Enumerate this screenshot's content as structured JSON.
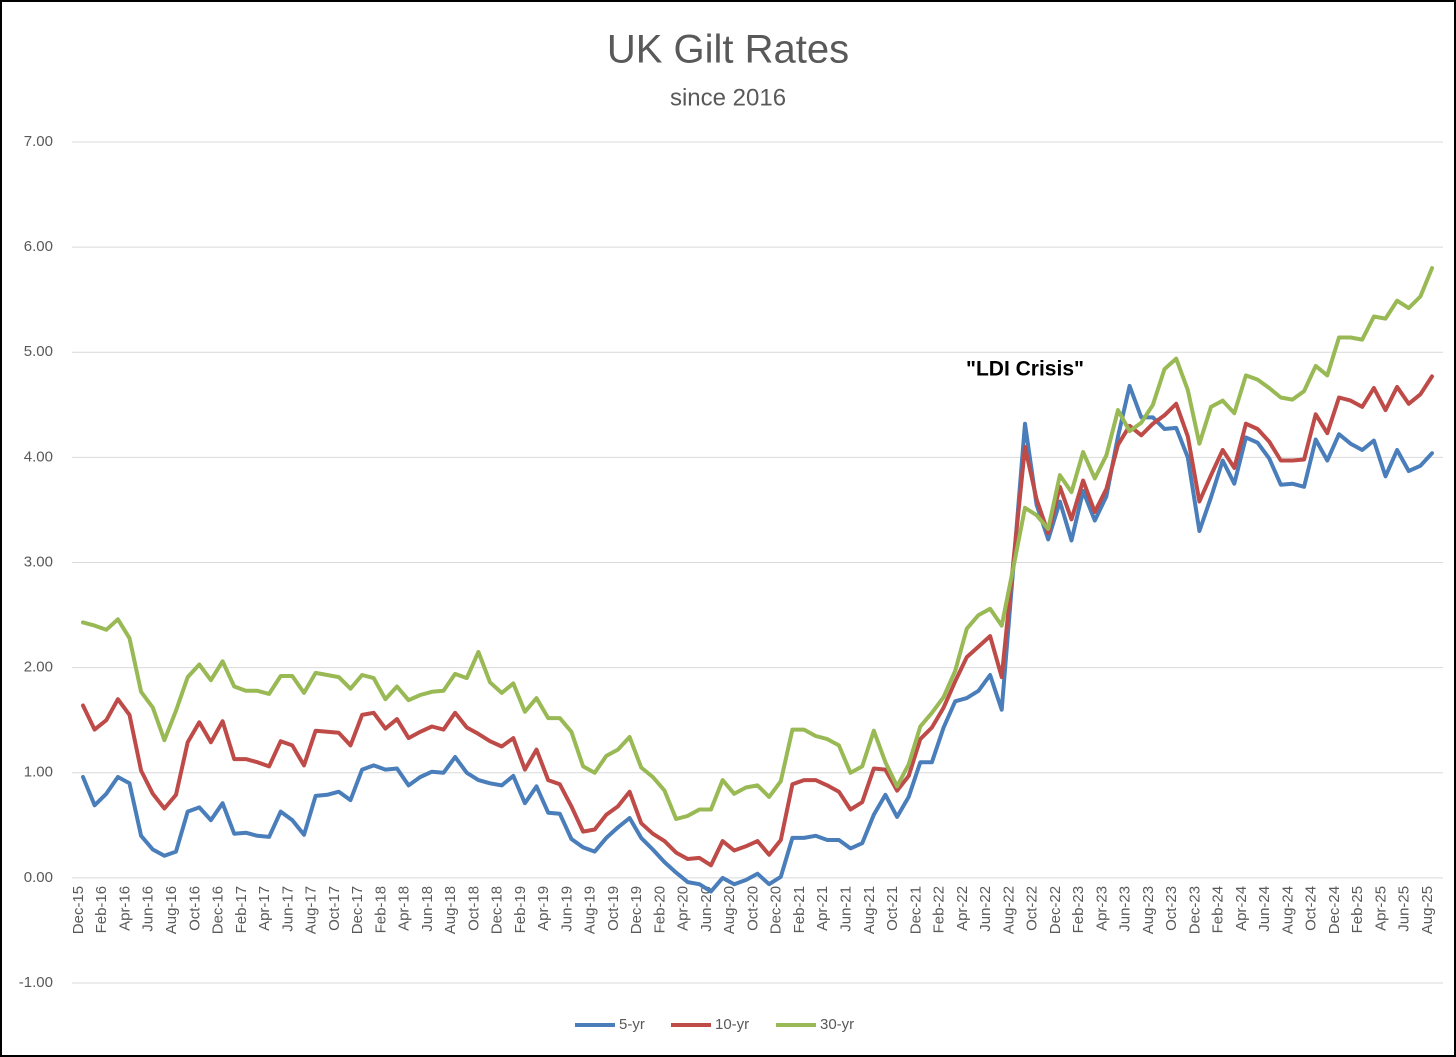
{
  "chart_data": {
    "type": "line",
    "title": "UK Gilt Rates",
    "subtitle": "since 2016",
    "annotation": "\"LDI Crisis\"",
    "categories": [
      "Dec-15",
      null,
      "Feb-16",
      null,
      "Apr-16",
      null,
      "Jun-16",
      null,
      "Aug-16",
      null,
      "Oct-16",
      null,
      "Dec-16",
      null,
      "Feb-17",
      null,
      "Apr-17",
      null,
      "Jun-17",
      null,
      "Aug-17",
      null,
      "Oct-17",
      null,
      "Dec-17",
      null,
      "Feb-18",
      null,
      "Apr-18",
      null,
      "Jun-18",
      null,
      "Aug-18",
      null,
      "Oct-18",
      null,
      "Dec-18",
      null,
      "Feb-19",
      null,
      "Apr-19",
      null,
      "Jun-19",
      null,
      "Aug-19",
      null,
      "Oct-19",
      null,
      "Dec-19",
      null,
      "Feb-20",
      null,
      "Apr-20",
      null,
      "Jun-20",
      null,
      "Aug-20",
      null,
      "Oct-20",
      null,
      "Dec-20",
      null,
      "Feb-21",
      null,
      "Apr-21",
      null,
      "Jun-21",
      null,
      "Aug-21",
      null,
      "Oct-21",
      null,
      "Dec-21",
      null,
      "Feb-22",
      null,
      "Apr-22",
      null,
      "Jun-22",
      null,
      "Aug-22",
      null,
      "Oct-22",
      null,
      "Dec-22",
      null,
      "Feb-23",
      null,
      "Apr-23",
      null,
      "Jun-23",
      null,
      "Aug-23",
      null,
      "Oct-23",
      null,
      "Dec-23",
      null,
      "Feb-24",
      null,
      "Apr-24",
      null,
      "Jun-24",
      null,
      "Aug-24",
      null,
      "Oct-24",
      null,
      "Dec-24",
      null,
      "Feb-25",
      null,
      "Apr-25",
      null,
      "Jun-25",
      null,
      "Aug-25"
    ],
    "series": [
      {
        "name": "5-yr",
        "color": "#4a7ebb",
        "values": [
          0.96,
          0.69,
          0.8,
          0.96,
          0.9,
          0.4,
          0.27,
          0.21,
          0.25,
          0.63,
          0.67,
          0.55,
          0.71,
          0.42,
          0.43,
          0.4,
          0.39,
          0.63,
          0.55,
          0.41,
          0.78,
          0.79,
          0.82,
          0.74,
          1.03,
          1.07,
          1.03,
          1.04,
          0.88,
          0.96,
          1.01,
          1.0,
          1.15,
          1.0,
          0.93,
          0.9,
          0.88,
          0.97,
          0.71,
          0.87,
          0.62,
          0.61,
          0.37,
          0.29,
          0.25,
          0.38,
          0.48,
          0.57,
          0.38,
          0.27,
          0.15,
          0.05,
          -0.04,
          -0.06,
          -0.13,
          0.0,
          -0.06,
          -0.02,
          0.04,
          -0.06,
          0.01,
          0.38,
          0.38,
          0.4,
          0.36,
          0.36,
          0.28,
          0.33,
          0.6,
          0.79,
          0.58,
          0.77,
          1.1,
          1.1,
          1.43,
          1.68,
          1.71,
          1.78,
          1.93,
          1.6,
          2.95,
          4.32,
          3.55,
          3.22,
          3.58,
          3.21,
          3.68,
          3.4,
          3.63,
          4.2,
          4.68,
          4.38,
          4.38,
          4.27,
          4.28,
          4.0,
          3.3,
          3.62,
          3.97,
          3.75,
          4.19,
          4.14,
          3.99,
          3.74,
          3.75,
          3.72,
          4.17,
          3.97,
          4.22,
          4.13,
          4.07,
          4.16,
          3.82,
          4.07,
          3.87,
          3.92,
          4.04
        ]
      },
      {
        "name": "10-yr",
        "color": "#be4b48",
        "values": [
          1.64,
          1.41,
          1.5,
          1.7,
          1.55,
          1.02,
          0.8,
          0.66,
          0.79,
          1.29,
          1.48,
          1.29,
          1.49,
          1.13,
          1.13,
          1.1,
          1.06,
          1.3,
          1.26,
          1.07,
          1.4,
          1.39,
          1.38,
          1.26,
          1.55,
          1.57,
          1.42,
          1.51,
          1.33,
          1.39,
          1.44,
          1.41,
          1.57,
          1.43,
          1.37,
          1.3,
          1.25,
          1.33,
          1.03,
          1.22,
          0.93,
          0.89,
          0.68,
          0.44,
          0.46,
          0.6,
          0.68,
          0.82,
          0.52,
          0.42,
          0.35,
          0.24,
          0.18,
          0.19,
          0.12,
          0.35,
          0.26,
          0.3,
          0.35,
          0.22,
          0.36,
          0.89,
          0.93,
          0.93,
          0.88,
          0.82,
          0.65,
          0.72,
          1.04,
          1.03,
          0.83,
          0.97,
          1.32,
          1.43,
          1.62,
          1.87,
          2.1,
          2.2,
          2.3,
          1.91,
          3.0,
          4.1,
          3.6,
          3.28,
          3.72,
          3.41,
          3.78,
          3.48,
          3.7,
          4.12,
          4.3,
          4.21,
          4.32,
          4.4,
          4.51,
          4.2,
          3.58,
          3.83,
          4.07,
          3.9,
          4.32,
          4.27,
          4.15,
          3.97,
          3.97,
          3.98,
          4.41,
          4.23,
          4.57,
          4.54,
          4.48,
          4.66,
          4.45,
          4.67,
          4.51,
          4.6,
          4.77
        ]
      },
      {
        "name": "30-yr",
        "color": "#98b954",
        "values": [
          2.43,
          2.4,
          2.36,
          2.46,
          2.28,
          1.77,
          1.62,
          1.31,
          1.59,
          1.91,
          2.03,
          1.88,
          2.06,
          1.82,
          1.78,
          1.78,
          1.75,
          1.92,
          1.92,
          1.76,
          1.95,
          1.93,
          1.91,
          1.8,
          1.93,
          1.9,
          1.7,
          1.82,
          1.69,
          1.74,
          1.77,
          1.78,
          1.94,
          1.9,
          2.15,
          1.86,
          1.76,
          1.85,
          1.58,
          1.71,
          1.52,
          1.52,
          1.39,
          1.06,
          1.0,
          1.16,
          1.22,
          1.34,
          1.05,
          0.96,
          0.83,
          0.56,
          0.59,
          0.65,
          0.65,
          0.93,
          0.8,
          0.86,
          0.88,
          0.77,
          0.92,
          1.41,
          1.41,
          1.35,
          1.32,
          1.26,
          1.0,
          1.06,
          1.4,
          1.1,
          0.87,
          1.08,
          1.44,
          1.57,
          1.72,
          1.97,
          2.37,
          2.5,
          2.56,
          2.4,
          2.95,
          3.52,
          3.45,
          3.32,
          3.83,
          3.67,
          4.05,
          3.8,
          4.02,
          4.45,
          4.25,
          4.33,
          4.5,
          4.84,
          4.94,
          4.64,
          4.13,
          4.48,
          4.54,
          4.42,
          4.78,
          4.74,
          4.66,
          4.57,
          4.55,
          4.63,
          4.87,
          4.78,
          5.14,
          5.14,
          5.12,
          5.34,
          5.32,
          5.49,
          5.42,
          5.53,
          5.8
        ]
      }
    ],
    "ylim": [
      -1,
      7
    ],
    "yticks": [
      {
        "value": -1,
        "label": "-1.00"
      },
      {
        "value": 0,
        "label": "0.00"
      },
      {
        "value": 1,
        "label": "1.00"
      },
      {
        "value": 2,
        "label": "2.00"
      },
      {
        "value": 3,
        "label": "3.00"
      },
      {
        "value": 4,
        "label": "4.00"
      },
      {
        "value": 5,
        "label": "5.00"
      },
      {
        "value": 6,
        "label": "6.00"
      },
      {
        "value": 7,
        "label": "7.00"
      }
    ],
    "grid": true,
    "legend": "bottom"
  }
}
